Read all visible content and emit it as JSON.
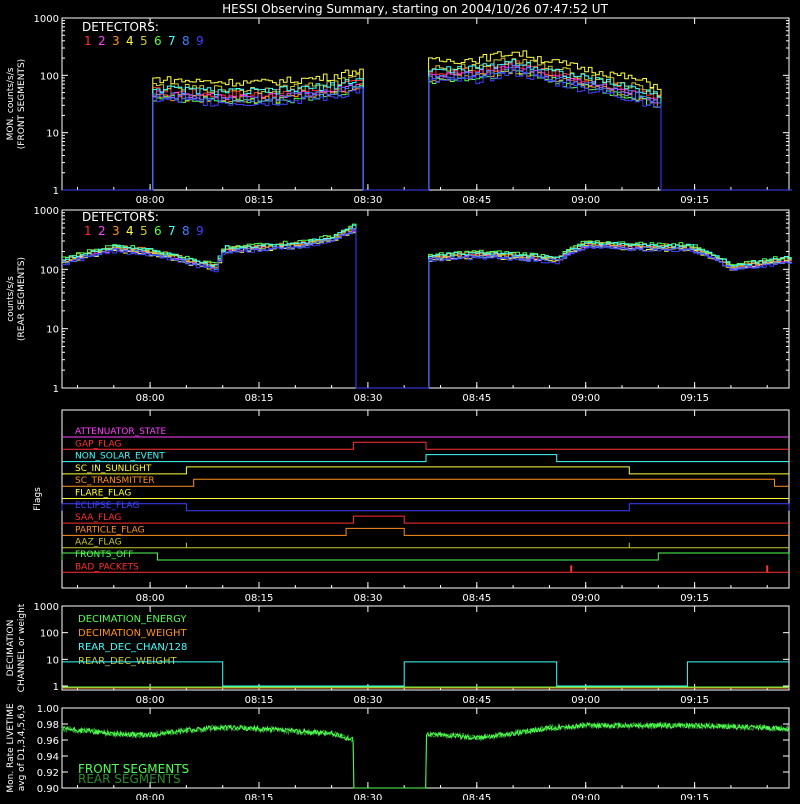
{
  "title": "HESSI Observing Summary, starting on 2004/10/26 07:47:52 UT",
  "time_axis": {
    "start": "07:47:52",
    "end": "09:28:00",
    "ticks": [
      "08:00",
      "08:15",
      "08:30",
      "08:45",
      "09:00",
      "09:15"
    ]
  },
  "detector_colors": [
    "#ff3030",
    "#ff40ff",
    "#ff9020",
    "#ffff40",
    "#c8c832",
    "#50ff50",
    "#40ffff",
    "#4080ff",
    "#4040ff"
  ],
  "panel1": {
    "ylabel_1": "MON. counts/s/s",
    "ylabel_2": "(FRONT SEGMENTS)",
    "legend_title": "DETECTORS:",
    "detector_labels": [
      "1",
      "2",
      "3",
      "4",
      "5",
      "6",
      "7",
      "8",
      "9"
    ],
    "ytick_labels": [
      "1",
      "10",
      "100",
      "1000"
    ]
  },
  "panel2": {
    "ylabel_1": "counts/s/s",
    "ylabel_2": "(REAR SEGMENTS)",
    "legend_title": "DETECTORS:",
    "detector_labels": [
      "1",
      "2",
      "3",
      "4",
      "5",
      "6",
      "7",
      "8",
      "9"
    ],
    "ytick_labels": [
      "1",
      "10",
      "100",
      "1000"
    ]
  },
  "panel3": {
    "ylabel": "Flags",
    "flags": [
      {
        "name": "ATTENUATOR_STATE",
        "color": "#ff40ff"
      },
      {
        "name": "GAP_FLAG",
        "color": "#ff3030"
      },
      {
        "name": "NON_SOLAR_EVENT",
        "color": "#40ffff"
      },
      {
        "name": "SC_IN_SUNLIGHT",
        "color": "#ffff40"
      },
      {
        "name": "SC_TRANSMITTER",
        "color": "#ff9020"
      },
      {
        "name": "FLARE_FLAG",
        "color": "#ffff40"
      },
      {
        "name": "ECLIPSE_FLAG",
        "color": "#4040ff"
      },
      {
        "name": "SAA_FLAG",
        "color": "#ff3030"
      },
      {
        "name": "PARTICLE_FLAG",
        "color": "#ff9020"
      },
      {
        "name": "AAZ_FLAG",
        "color": "#c8c832"
      },
      {
        "name": "FRONTS_OFF",
        "color": "#50ff50"
      },
      {
        "name": "BAD_PACKETS",
        "color": "#ff3030"
      }
    ]
  },
  "panel4": {
    "ylabel_1": "DECIMATION",
    "ylabel_2": "CHANNEL or weight",
    "ytick_labels": [
      "1",
      "10",
      "100",
      "1000"
    ],
    "legend": [
      {
        "name": "DECIMATION_ENERGY",
        "color": "#50ff50"
      },
      {
        "name": "DECIMATION_WEIGHT",
        "color": "#ff9020"
      },
      {
        "name": "REAR_DEC_CHAN/128",
        "color": "#40ffff"
      },
      {
        "name": "REAR_DEC_WEIGHT",
        "color": "#c8c832"
      }
    ]
  },
  "panel5": {
    "ylabel_1": "Mon. Rate LIVETIME",
    "ylabel_2": "avg of D1,3,4,5,6,9",
    "ytick_labels": [
      "0.90",
      "0.92",
      "0.94",
      "0.96",
      "0.98",
      "1.00"
    ],
    "legend": [
      {
        "name": "FRONT SEGMENTS",
        "color": "#50ff50"
      },
      {
        "name": "REAR SEGMENTS",
        "color": "#2a8a2a"
      }
    ]
  },
  "chart_data": [
    {
      "type": "line",
      "panel": "front",
      "yscale": "log",
      "ylim": [
        1,
        1000
      ],
      "x": [
        "08:00",
        "08:05",
        "08:10",
        "08:15",
        "08:20",
        "08:25",
        "08:29",
        "08:38",
        "08:45",
        "08:50",
        "08:55",
        "09:00",
        "09:05",
        "09:10"
      ],
      "series_mean": [
        55,
        50,
        48,
        47,
        52,
        60,
        80,
        110,
        120,
        160,
        110,
        80,
        60,
        40
      ],
      "gaps": [
        [
          "07:47:52",
          "08:00"
        ],
        [
          "08:29",
          "08:38"
        ],
        [
          "09:10",
          "09:28"
        ]
      ]
    },
    {
      "type": "line",
      "panel": "rear",
      "yscale": "log",
      "ylim": [
        1,
        1000
      ],
      "x": [
        "07:48",
        "07:55",
        "08:00",
        "08:05",
        "08:09",
        "08:10",
        "08:15",
        "08:20",
        "08:25",
        "08:28",
        "08:38",
        "08:45",
        "08:50",
        "08:56",
        "09:00",
        "09:05",
        "09:10",
        "09:14",
        "09:20",
        "09:28"
      ],
      "series_mean": [
        140,
        230,
        200,
        140,
        110,
        220,
        240,
        260,
        330,
        500,
        160,
        180,
        170,
        150,
        270,
        250,
        240,
        240,
        110,
        150
      ],
      "gaps": [
        [
          "08:28",
          "08:38"
        ]
      ]
    },
    {
      "type": "step",
      "panel": "flags",
      "flags": {
        "GAP_FLAG": [
          [
            "08:28",
            "08:38"
          ]
        ],
        "NON_SOLAR_EVENT": [
          [
            "08:38",
            "08:56"
          ]
        ],
        "SC_IN_SUNLIGHT": [
          [
            "08:05",
            "09:06"
          ]
        ],
        "SC_TRANSMITTER": [
          [
            "08:06",
            "09:26"
          ]
        ],
        "ECLIPSE_FLAG": [
          [
            "07:47:52",
            "08:05"
          ],
          [
            "09:06",
            "09:28"
          ]
        ],
        "SAA_FLAG": [
          [
            "08:28",
            "08:35"
          ]
        ],
        "PARTICLE_FLAG": [
          [
            "08:27",
            "08:35"
          ]
        ],
        "FRONTS_OFF": [
          [
            "07:47:52",
            "08:01"
          ],
          [
            "09:10",
            "09:28"
          ]
        ]
      }
    },
    {
      "type": "step",
      "panel": "decimation",
      "yscale": "log",
      "ylim": [
        1,
        1000
      ],
      "segments": [
        {
          "from": "07:47:52",
          "to": "08:10",
          "value": 8
        },
        {
          "from": "08:10",
          "to": "08:35",
          "value": 1
        },
        {
          "from": "08:35",
          "to": "08:56",
          "value": 8
        },
        {
          "from": "08:56",
          "to": "09:14",
          "value": 1
        },
        {
          "from": "09:14",
          "to": "09:28",
          "value": 8
        }
      ]
    },
    {
      "type": "line",
      "panel": "livetime",
      "ylim": [
        0.9,
        1.0
      ],
      "x": [
        "07:48",
        "07:55",
        "08:00",
        "08:05",
        "08:10",
        "08:15",
        "08:20",
        "08:25",
        "08:28",
        "08:38",
        "08:45",
        "08:50",
        "08:55",
        "09:00",
        "09:05",
        "09:10",
        "09:15",
        "09:20",
        "09:28"
      ],
      "front": [
        0.974,
        0.968,
        0.966,
        0.972,
        0.976,
        0.974,
        0.971,
        0.968,
        0.96,
        0.968,
        0.963,
        0.968,
        0.975,
        0.978,
        0.978,
        0.978,
        0.978,
        0.977,
        0.974
      ],
      "gaps": [
        [
          "08:28",
          "08:38"
        ]
      ]
    }
  ]
}
